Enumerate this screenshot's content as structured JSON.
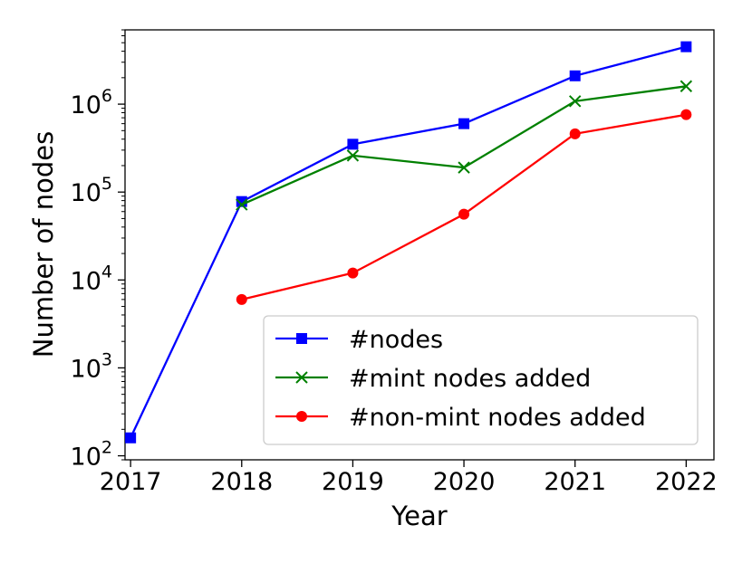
{
  "chart_data": {
    "type": "line",
    "title": "",
    "xlabel": "Year",
    "ylabel": "Number of nodes",
    "x": [
      2017,
      2018,
      2019,
      2020,
      2021,
      2022
    ],
    "x_tick_labels": [
      "2017",
      "2018",
      "2019",
      "2020",
      "2021",
      "2022"
    ],
    "xlim": [
      2016.95,
      2022.25
    ],
    "y_scale": "log",
    "ylim": [
      90,
      7000000
    ],
    "y_ticks": [
      {
        "value": 100,
        "base": "10",
        "exp": "2"
      },
      {
        "value": 1000,
        "base": "10",
        "exp": "3"
      },
      {
        "value": 10000,
        "base": "10",
        "exp": "4"
      },
      {
        "value": 100000,
        "base": "10",
        "exp": "5"
      },
      {
        "value": 1000000,
        "base": "10",
        "exp": "6"
      }
    ],
    "grid": false,
    "legend_position": "lower-right",
    "series": [
      {
        "name": "#nodes",
        "color": "#0000ff",
        "marker": "square",
        "points": [
          {
            "x": 2017,
            "y": 160
          },
          {
            "x": 2018,
            "y": 78000
          },
          {
            "x": 2019,
            "y": 350000
          },
          {
            "x": 2020,
            "y": 600000
          },
          {
            "x": 2021,
            "y": 2100000
          },
          {
            "x": 2022,
            "y": 4500000
          }
        ]
      },
      {
        "name": "#mint nodes added",
        "color": "#008000",
        "marker": "x",
        "points": [
          {
            "x": 2018,
            "y": 72000
          },
          {
            "x": 2019,
            "y": 260000
          },
          {
            "x": 2020,
            "y": 190000
          },
          {
            "x": 2021,
            "y": 1080000
          },
          {
            "x": 2022,
            "y": 1600000
          }
        ]
      },
      {
        "name": "#non-mint nodes added",
        "color": "#ff0000",
        "marker": "circle",
        "points": [
          {
            "x": 2018,
            "y": 6000
          },
          {
            "x": 2019,
            "y": 12000
          },
          {
            "x": 2020,
            "y": 56000
          },
          {
            "x": 2021,
            "y": 460000
          },
          {
            "x": 2022,
            "y": 760000
          }
        ]
      }
    ]
  }
}
